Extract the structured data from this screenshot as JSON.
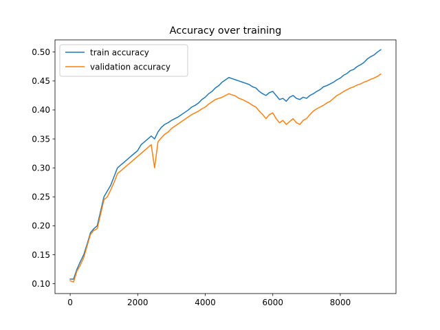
{
  "chart_data": {
    "type": "line",
    "title": "Accuracy over training",
    "xlabel": "",
    "ylabel": "",
    "xlim": [
      -450,
      9650
    ],
    "ylim": [
      0.083,
      0.521
    ],
    "xticks": [
      0,
      2000,
      4000,
      6000,
      8000
    ],
    "xtick_labels": [
      "0",
      "2000",
      "4000",
      "6000",
      "8000"
    ],
    "yticks": [
      0.1,
      0.15,
      0.2,
      0.25,
      0.3,
      0.35,
      0.4,
      0.45,
      0.5
    ],
    "ytick_labels": [
      "0.10",
      "0.15",
      "0.20",
      "0.25",
      "0.30",
      "0.35",
      "0.40",
      "0.45",
      "0.50"
    ],
    "grid": false,
    "legend_position": "upper left",
    "series": [
      {
        "name": "train accuracy",
        "color": "#1f77b4",
        "x": [
          0,
          100,
          200,
          300,
          400,
          500,
          600,
          700,
          800,
          900,
          1000,
          1100,
          1200,
          1300,
          1400,
          1500,
          1600,
          1700,
          1800,
          1900,
          2000,
          2100,
          2200,
          2300,
          2400,
          2500,
          2600,
          2700,
          2800,
          2900,
          3000,
          3100,
          3200,
          3300,
          3400,
          3500,
          3600,
          3700,
          3800,
          3900,
          4000,
          4100,
          4200,
          4300,
          4400,
          4500,
          4600,
          4700,
          4800,
          4900,
          5000,
          5100,
          5200,
          5300,
          5400,
          5500,
          5600,
          5700,
          5800,
          5900,
          6000,
          6100,
          6200,
          6300,
          6400,
          6500,
          6600,
          6700,
          6800,
          6900,
          7000,
          7100,
          7200,
          7300,
          7400,
          7500,
          7600,
          7700,
          7800,
          7900,
          8000,
          8100,
          8200,
          8300,
          8400,
          8500,
          8600,
          8700,
          8800,
          8900,
          9000,
          9100,
          9200
        ],
        "y": [
          0.108,
          0.108,
          0.125,
          0.138,
          0.15,
          0.168,
          0.188,
          0.195,
          0.2,
          0.225,
          0.25,
          0.26,
          0.27,
          0.285,
          0.3,
          0.305,
          0.31,
          0.315,
          0.32,
          0.325,
          0.33,
          0.34,
          0.345,
          0.35,
          0.355,
          0.35,
          0.362,
          0.37,
          0.375,
          0.378,
          0.382,
          0.385,
          0.388,
          0.392,
          0.396,
          0.4,
          0.405,
          0.408,
          0.412,
          0.418,
          0.422,
          0.428,
          0.432,
          0.438,
          0.442,
          0.448,
          0.452,
          0.456,
          0.454,
          0.452,
          0.45,
          0.448,
          0.446,
          0.444,
          0.44,
          0.438,
          0.432,
          0.428,
          0.425,
          0.43,
          0.432,
          0.425,
          0.418,
          0.42,
          0.415,
          0.422,
          0.425,
          0.42,
          0.418,
          0.422,
          0.42,
          0.425,
          0.428,
          0.432,
          0.435,
          0.44,
          0.442,
          0.445,
          0.448,
          0.452,
          0.455,
          0.46,
          0.463,
          0.468,
          0.47,
          0.475,
          0.478,
          0.482,
          0.488,
          0.492,
          0.495,
          0.5,
          0.504
        ]
      },
      {
        "name": "validation accuracy",
        "color": "#ff7f0e",
        "x": [
          0,
          100,
          200,
          300,
          400,
          500,
          600,
          700,
          800,
          900,
          1000,
          1100,
          1200,
          1300,
          1400,
          1500,
          1600,
          1700,
          1800,
          1900,
          2000,
          2100,
          2200,
          2300,
          2400,
          2500,
          2600,
          2700,
          2800,
          2900,
          3000,
          3100,
          3200,
          3300,
          3400,
          3500,
          3600,
          3700,
          3800,
          3900,
          4000,
          4100,
          4200,
          4300,
          4400,
          4500,
          4600,
          4700,
          4800,
          4900,
          5000,
          5100,
          5200,
          5300,
          5400,
          5500,
          5600,
          5700,
          5800,
          5900,
          6000,
          6100,
          6200,
          6300,
          6400,
          6500,
          6600,
          6700,
          6800,
          6900,
          7000,
          7100,
          7200,
          7300,
          7400,
          7500,
          7600,
          7700,
          7800,
          7900,
          8000,
          8100,
          8200,
          8300,
          8400,
          8500,
          8600,
          8700,
          8800,
          8900,
          9000,
          9100,
          9200
        ],
        "y": [
          0.105,
          0.103,
          0.122,
          0.132,
          0.145,
          0.165,
          0.185,
          0.192,
          0.195,
          0.22,
          0.245,
          0.25,
          0.262,
          0.275,
          0.29,
          0.295,
          0.3,
          0.305,
          0.31,
          0.315,
          0.32,
          0.325,
          0.33,
          0.335,
          0.34,
          0.3,
          0.345,
          0.352,
          0.358,
          0.362,
          0.368,
          0.372,
          0.376,
          0.38,
          0.384,
          0.388,
          0.392,
          0.395,
          0.398,
          0.402,
          0.405,
          0.41,
          0.414,
          0.418,
          0.42,
          0.422,
          0.425,
          0.428,
          0.426,
          0.424,
          0.42,
          0.418,
          0.415,
          0.412,
          0.408,
          0.405,
          0.398,
          0.392,
          0.385,
          0.392,
          0.395,
          0.385,
          0.378,
          0.382,
          0.375,
          0.38,
          0.385,
          0.378,
          0.375,
          0.382,
          0.385,
          0.392,
          0.398,
          0.402,
          0.405,
          0.408,
          0.412,
          0.415,
          0.42,
          0.425,
          0.428,
          0.432,
          0.435,
          0.438,
          0.44,
          0.443,
          0.445,
          0.448,
          0.45,
          0.453,
          0.455,
          0.458,
          0.462
        ]
      }
    ]
  }
}
